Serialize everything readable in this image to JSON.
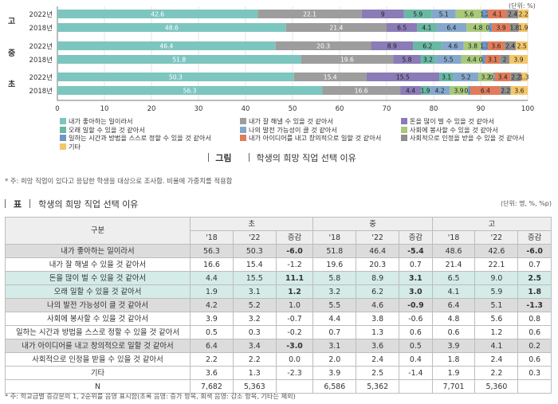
{
  "chart_data": {
    "type": "bar",
    "stacked": true,
    "orientation": "horizontal",
    "unit": "(단위: %)",
    "xlim": [
      0,
      100
    ],
    "xticks": [
      0,
      10,
      20,
      30,
      40,
      50,
      60,
      70,
      80,
      90,
      100
    ],
    "groups": [
      {
        "label": "고",
        "rows": [
          {
            "year": "2022년",
            "values": [
              42.6,
              22.1,
              9,
              5.9,
              5.1,
              5.6,
              1.2,
              4.1,
              2.4,
              2.2
            ]
          },
          {
            "year": "2018년",
            "values": [
              48.6,
              21.4,
              6.5,
              4.1,
              6.4,
              4.8,
              0.6,
              3.9,
              1.8,
              1.9
            ]
          }
        ]
      },
      {
        "label": "중",
        "rows": [
          {
            "year": "2022년",
            "values": [
              46.4,
              20.3,
              8.9,
              6.2,
              4.6,
              3.8,
              1.3,
              3.6,
              2.4,
              2.5
            ]
          },
          {
            "year": "2018년",
            "values": [
              51.8,
              19.6,
              5.8,
              3.2,
              5.5,
              4.4,
              0.7,
              3.1,
              2.0,
              3.9
            ]
          }
        ]
      },
      {
        "label": "초",
        "rows": [
          {
            "year": "2022년",
            "values": [
              50.3,
              15.4,
              15.5,
              3.1,
              5.2,
              3.2,
              0.3,
              3.4,
              2.2,
              1.3
            ]
          },
          {
            "year": "2018년",
            "values": [
              56.3,
              16.6,
              4.4,
              1.9,
              4.2,
              3.9,
              0.5,
              6.4,
              2.2,
              3.6
            ]
          }
        ]
      }
    ],
    "series": [
      {
        "name": "내가 좋아하는 일이라서",
        "color": "#7cc6bf"
      },
      {
        "name": "내가 잘 해낼 수 있을 것 같아서",
        "color": "#9d9d9d"
      },
      {
        "name": "돈을 많이 벌 수 있을 것 같아서",
        "color": "#8b7bb7"
      },
      {
        "name": "오래 일할 수 있을 것 같아서",
        "color": "#69b8a4"
      },
      {
        "name": "나의 발전 가능성이 클 것 같아서",
        "color": "#86a7cc"
      },
      {
        "name": "사회에 봉사할 수 있을 것 같아서",
        "color": "#a9c97a"
      },
      {
        "name": "일하는 시간과 방법을 스스로 정할 수 있을 것 같아서",
        "color": "#6e95c8"
      },
      {
        "name": "내가 아이디어를 내고 창의적으로 일할 것 같아서",
        "color": "#e07c5a"
      },
      {
        "name": "사회적으로 인정을 받을 수 있을 것 같아서",
        "color": "#8f8f8f"
      },
      {
        "name": "기타",
        "color": "#f3c76a"
      }
    ]
  },
  "figure_caption": {
    "tag": "그림",
    "title": "학생의 희망 직업 선택 이유"
  },
  "figure_note": "* 주: 희망 직업이 있다고 응답한 학생을 대상으로 조사함. 비율에 가중치를 적용함",
  "table": {
    "tag": "표",
    "title": "학생의 희망 직업 선택 이유",
    "unit": "(단위: 명, %, %p)",
    "corner": "구분",
    "groups": [
      "초",
      "중",
      "고"
    ],
    "subheaders": [
      "'18",
      "'22",
      "증감"
    ],
    "rows": [
      {
        "label": "내가 좋아하는 일이라서",
        "cells": [
          "56.3",
          "50.3",
          "-6.0",
          "51.8",
          "46.4",
          "-5.4",
          "48.6",
          "42.6",
          "-6.0"
        ],
        "style": "gr",
        "bold": [
          2,
          5,
          8
        ]
      },
      {
        "label": "내가 잘 해낼 수 있을 것 같아서",
        "cells": [
          "16.6",
          "15.4",
          "-1.2",
          "19.6",
          "20.3",
          "0.7",
          "21.4",
          "22.1",
          "0.7"
        ],
        "style": "",
        "bold": []
      },
      {
        "label": "돈을 많이 벌 수 있을 것 같아서",
        "cells": [
          "4.4",
          "15.5",
          "11.1",
          "5.8",
          "8.9",
          "3.1",
          "6.5",
          "9.0",
          "2.5"
        ],
        "style": "hl",
        "bold": [
          2,
          5,
          8
        ]
      },
      {
        "label": "오래 일할 수 있을 것 같아서",
        "cells": [
          "1.9",
          "3.1",
          "1.2",
          "3.2",
          "6.2",
          "3.0",
          "4.1",
          "5.9",
          "1.8"
        ],
        "style": "hl",
        "bold": [
          2,
          5,
          8
        ]
      },
      {
        "label": "나의 발전 가능성이 클 것 같아서",
        "cells": [
          "4.2",
          "5.2",
          "1.0",
          "5.5",
          "4.6",
          "-0.9",
          "6.4",
          "5.1",
          "-1.3"
        ],
        "style": "gr",
        "bold": [
          5,
          8
        ]
      },
      {
        "label": "사회에 봉사할 수 있을 것 같아서",
        "cells": [
          "3.9",
          "3.2",
          "-0.7",
          "4.4",
          "3.8",
          "-0.6",
          "4.8",
          "5.6",
          "0.8"
        ],
        "style": "",
        "bold": []
      },
      {
        "label": "일하는 시간과 방법을 스스로 정할 수 있을 것 같아서",
        "cells": [
          "0.5",
          "0.3",
          "-0.2",
          "0.7",
          "1.3",
          "0.6",
          "0.6",
          "1.2",
          "0.6"
        ],
        "style": "",
        "bold": []
      },
      {
        "label": "내가 아이디어를 내고 창의적으로 일할 것 같아서",
        "cells": [
          "6.4",
          "3.4",
          "-3.0",
          "3.1",
          "3.6",
          "0.5",
          "3.9",
          "4.1",
          "0.2"
        ],
        "style": "gr",
        "bold": [
          2
        ]
      },
      {
        "label": "사회적으로 인정을 받을 수 있을 것 같아서",
        "cells": [
          "2.2",
          "2.2",
          "0.0",
          "2.0",
          "2.4",
          "0.4",
          "1.8",
          "2.4",
          "0.6"
        ],
        "style": "",
        "bold": []
      },
      {
        "label": "기타",
        "cells": [
          "3.6",
          "1.3",
          "-2.3",
          "3.9",
          "2.5",
          "-1.4",
          "1.9",
          "2.2",
          "0.3"
        ],
        "style": "",
        "bold": []
      },
      {
        "label": "N",
        "cells": [
          "7,682",
          "5,363",
          "",
          "6,586",
          "5,362",
          "",
          "7,701",
          "5,360",
          ""
        ],
        "style": "",
        "bold": []
      }
    ]
  },
  "table_note": "* 주: 학교급별 증감분의 1, 2순위를 음영 표시함(초록 음영: 증가 항목, 회색 음영: 감소 항목, 기타는 제외)"
}
